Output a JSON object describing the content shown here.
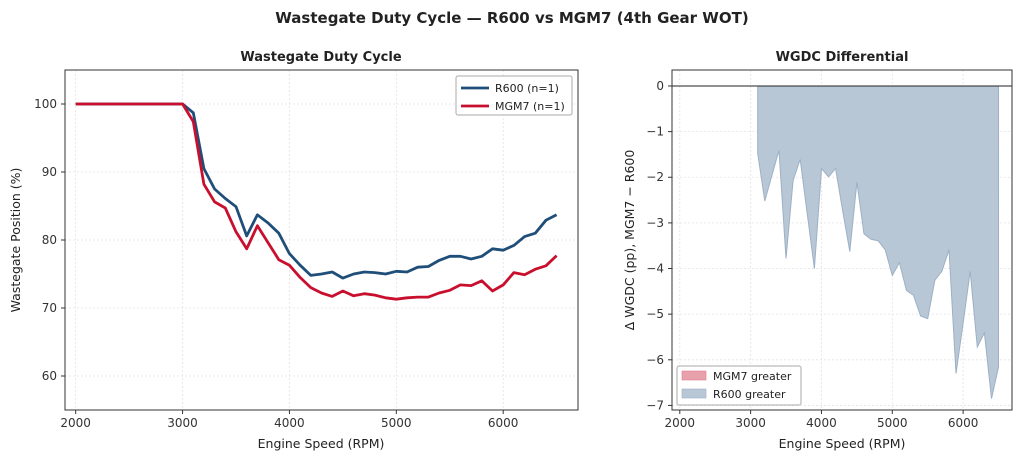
{
  "suptitle": "Wastegate Duty Cycle — R600 vs MGM7 (4th Gear WOT)",
  "chart_data": [
    {
      "type": "line",
      "title": "Wastegate Duty Cycle",
      "xlabel": "Engine Speed (RPM)",
      "ylabel": "Wastegate Position (%)",
      "xlim": [
        1900,
        6700
      ],
      "ylim": [
        55,
        105
      ],
      "xticks": [
        2000,
        3000,
        4000,
        5000,
        6000
      ],
      "yticks": [
        60,
        70,
        80,
        90,
        100
      ],
      "grid": true,
      "legend_position": "top-right",
      "x": [
        2000,
        2100,
        2200,
        2300,
        2400,
        2500,
        2600,
        2700,
        2800,
        2900,
        3000,
        3100,
        3200,
        3300,
        3400,
        3500,
        3600,
        3700,
        3800,
        3900,
        4000,
        4100,
        4200,
        4300,
        4400,
        4500,
        4600,
        4700,
        4800,
        4900,
        5000,
        5100,
        5200,
        5300,
        5400,
        5500,
        5600,
        5700,
        5800,
        5900,
        6000,
        6100,
        6200,
        6300,
        6400,
        6500
      ],
      "series": [
        {
          "name": "R600 (n=1)",
          "color": "#1f4e79",
          "values": [
            100,
            100,
            100,
            100,
            100,
            100,
            100,
            100,
            100,
            100,
            100,
            98.7,
            90.5,
            87.5,
            86.1,
            84.9,
            80.6,
            83.7,
            82.5,
            81.0,
            78.0,
            76.3,
            74.8,
            75.0,
            75.3,
            74.4,
            75.0,
            75.3,
            75.2,
            75.0,
            75.4,
            75.3,
            76.0,
            76.1,
            77.0,
            77.6,
            77.6,
            77.2,
            77.6,
            78.7,
            78.5,
            79.2,
            80.5,
            81.0,
            82.9,
            83.7
          ]
        },
        {
          "name": "MGM7 (n=1)",
          "color": "#c8102e",
          "values": [
            100,
            100,
            100,
            100,
            100,
            100,
            100,
            100,
            100,
            100,
            100,
            97.4,
            88.2,
            85.6,
            84.7,
            81.2,
            78.7,
            82.1,
            79.6,
            77.1,
            76.3,
            74.5,
            73.0,
            72.2,
            71.7,
            72.5,
            71.8,
            72.1,
            71.9,
            71.5,
            71.3,
            71.5,
            71.6,
            71.6,
            72.2,
            72.6,
            73.4,
            73.3,
            74.0,
            72.5,
            73.4,
            75.2,
            74.9,
            75.7,
            76.2,
            77.7
          ]
        }
      ]
    },
    {
      "type": "area",
      "title": "WGDC Differential",
      "xlabel": "Engine Speed (RPM)",
      "ylabel": "Δ WGDC (pp), MGM7 − R600",
      "xlim": [
        1890,
        6690
      ],
      "ylim": [
        -7.1,
        0.35
      ],
      "xticks": [
        2000,
        3000,
        4000,
        5000,
        6000
      ],
      "yticks": [
        0,
        -1,
        -2,
        -3,
        -4,
        -5,
        -6,
        -7
      ],
      "grid": true,
      "legend_position": "bottom-left",
      "legend": [
        {
          "label": "MGM7 greater",
          "color": "#e8a0aa"
        },
        {
          "label": "R600 greater",
          "color": "#b8c7d6"
        }
      ],
      "x": [
        3100,
        3200,
        3300,
        3400,
        3500,
        3600,
        3700,
        3800,
        3900,
        4000,
        4100,
        4200,
        4300,
        4400,
        4500,
        4600,
        4700,
        4800,
        4900,
        5000,
        5100,
        5200,
        5300,
        5400,
        5500,
        5600,
        5700,
        5800,
        5900,
        6000,
        6100,
        6200,
        6300,
        6400,
        6500
      ],
      "values": [
        -1.48,
        -2.52,
        -1.96,
        -1.41,
        -3.78,
        -2.07,
        -1.61,
        -2.81,
        -4.0,
        -1.81,
        -1.99,
        -1.81,
        -2.74,
        -3.63,
        -2.11,
        -3.24,
        -3.36,
        -3.39,
        -3.59,
        -4.15,
        -3.87,
        -4.48,
        -4.59,
        -5.04,
        -5.1,
        -4.26,
        -4.06,
        -3.59,
        -6.3,
        -5.2,
        -4.06,
        -5.72,
        -5.41,
        -6.85,
        -6.16
      ]
    }
  ]
}
